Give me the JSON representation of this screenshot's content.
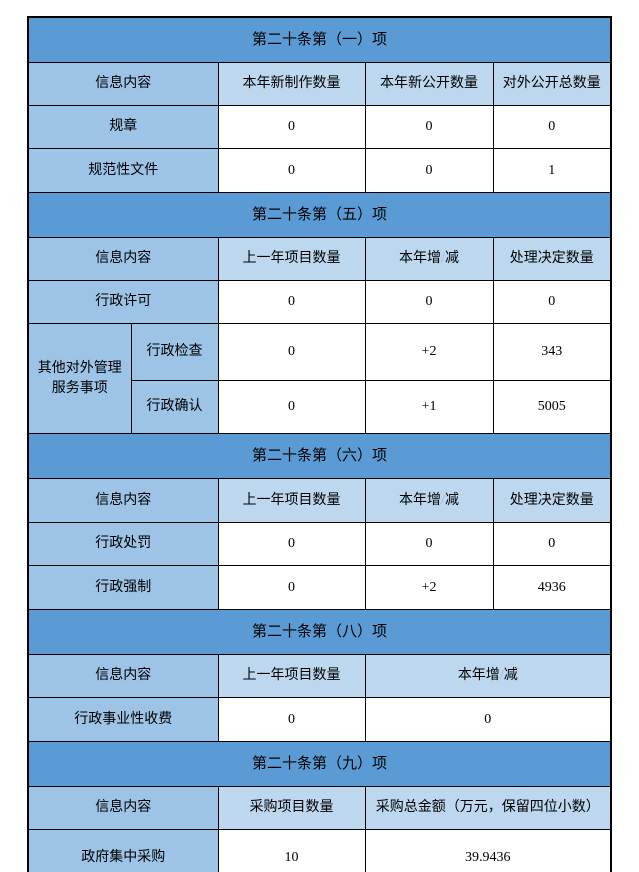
{
  "colors": {
    "band": "#5B9BD5",
    "label_cell": "#9DC3E6",
    "header_cell": "#BDD7EE",
    "border": "#000000",
    "slash": "#9FB6D4"
  },
  "sections": [
    {
      "header": "第二十条第（一）项",
      "columns": [
        "信息内容",
        "本年新制作数量",
        "本年新公开数量",
        "对外公开总数量"
      ],
      "rows": [
        {
          "label": "规章",
          "values": [
            "0",
            "0",
            "0"
          ]
        },
        {
          "label": "规范性文件",
          "values": [
            "0",
            "0",
            "1"
          ]
        }
      ]
    },
    {
      "header": "第二十条第（五）项",
      "columns": [
        "信息内容",
        "上一年项目数量",
        "本年增/减",
        "处理决定数量"
      ],
      "rows": [
        {
          "label": "行政许可",
          "values": [
            "0",
            "0",
            "0"
          ]
        },
        {
          "group": "其他对外管理服务事项",
          "label": "行政检查",
          "values": [
            "0",
            "+2",
            "343"
          ]
        },
        {
          "label": "行政确认",
          "values": [
            "0",
            "+1",
            "5005"
          ]
        }
      ]
    },
    {
      "header": "第二十条第（六）项",
      "columns": [
        "信息内容",
        "上一年项目数量",
        "本年增/减",
        "处理决定数量"
      ],
      "rows": [
        {
          "label": "行政处罚",
          "values": [
            "0",
            "0",
            "0"
          ]
        },
        {
          "label": "行政强制",
          "values": [
            "0",
            "+2",
            "4936"
          ]
        }
      ]
    },
    {
      "header": "第二十条第（八）项",
      "columns": [
        "信息内容",
        "上一年项目数量",
        "本年增/减"
      ],
      "rows": [
        {
          "label": "行政事业性收费",
          "values": [
            "0",
            "0"
          ]
        }
      ]
    },
    {
      "header": "第二十条第（九）项",
      "columns": [
        "信息内容",
        "采购项目数量",
        "采购总金额（万元，保留四位小数）"
      ],
      "rows": [
        {
          "label": "政府集中采购",
          "values": [
            "10",
            "39.9436"
          ]
        }
      ]
    }
  ]
}
